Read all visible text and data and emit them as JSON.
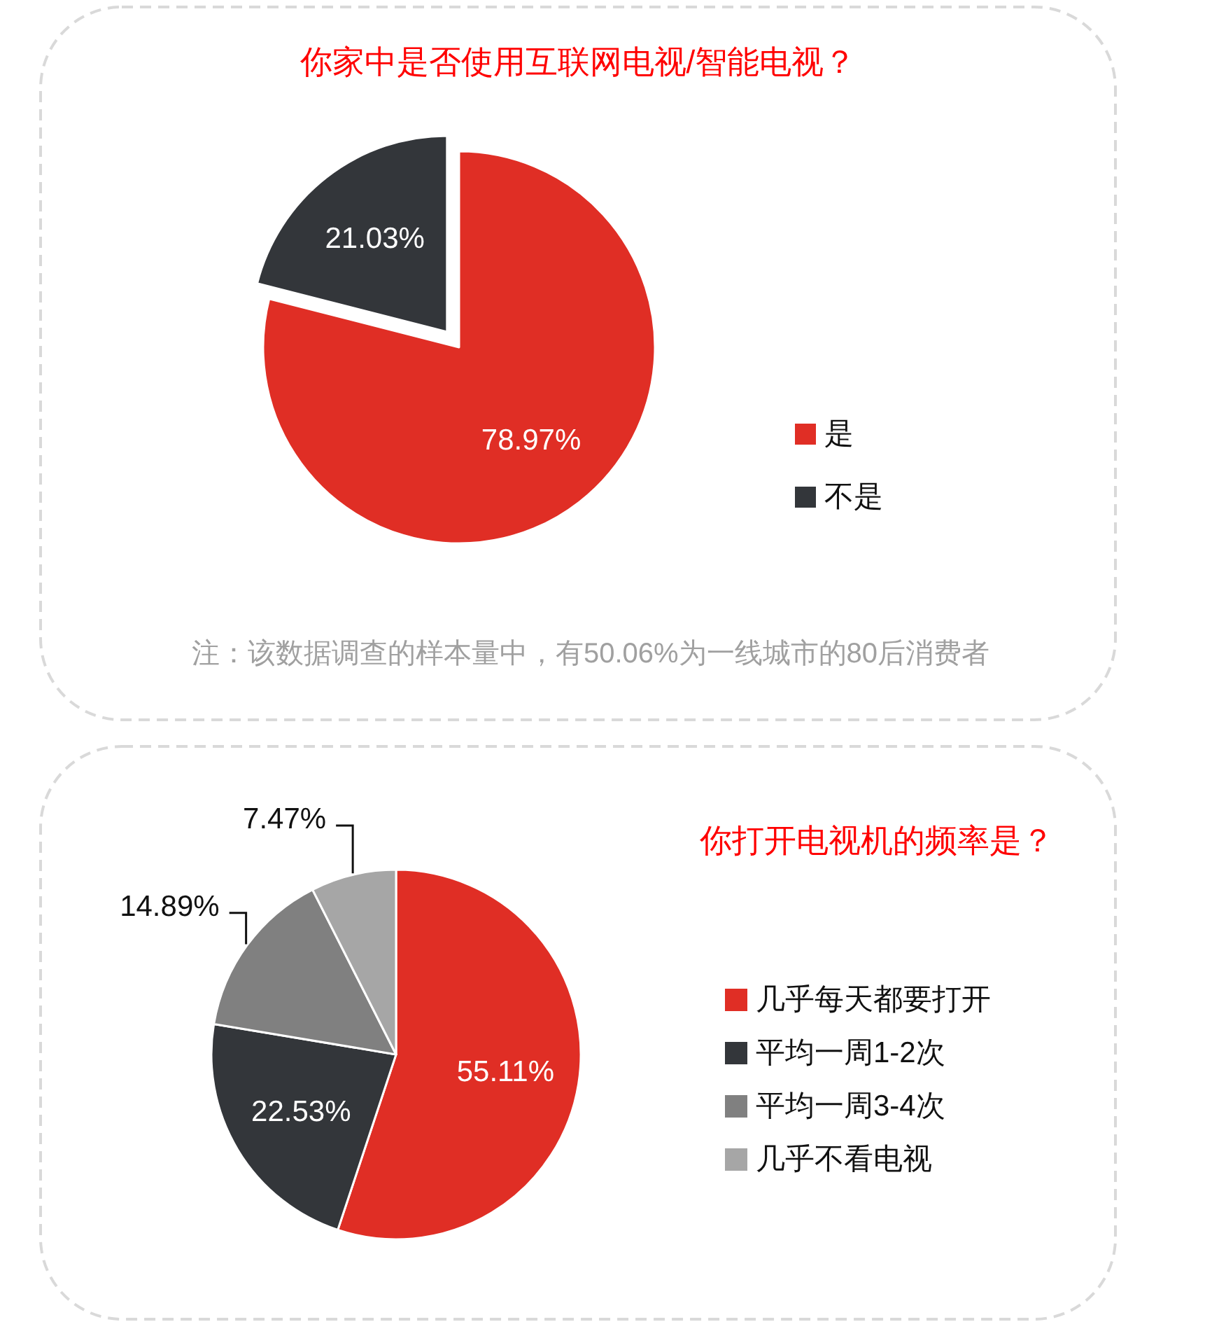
{
  "chart_data": [
    {
      "type": "pie",
      "title": "你家中是否使用互联网电视/智能电视？",
      "categories": [
        "是",
        "不是"
      ],
      "values": [
        78.97,
        21.03
      ],
      "colors": [
        "#e02e25",
        "#33363a"
      ],
      "value_labels": [
        "78.97%",
        "21.03%"
      ],
      "legend": "right",
      "annotations": [
        "注：该数据调查的样本量中，有50.06%为一线城市的80后消费者"
      ]
    },
    {
      "type": "pie",
      "title": "你打开电视机的频率是？",
      "categories": [
        "几乎每天都要打开",
        "平均一周1-2次",
        "平均一周3-4次",
        "几乎不看电视"
      ],
      "values": [
        55.11,
        22.53,
        14.89,
        7.47
      ],
      "colors": [
        "#e02e25",
        "#33363a",
        "#808080",
        "#a6a6a6"
      ],
      "value_labels": [
        "55.11%",
        "22.53%",
        "14.89%",
        "7.47%"
      ],
      "legend": "right"
    }
  ]
}
